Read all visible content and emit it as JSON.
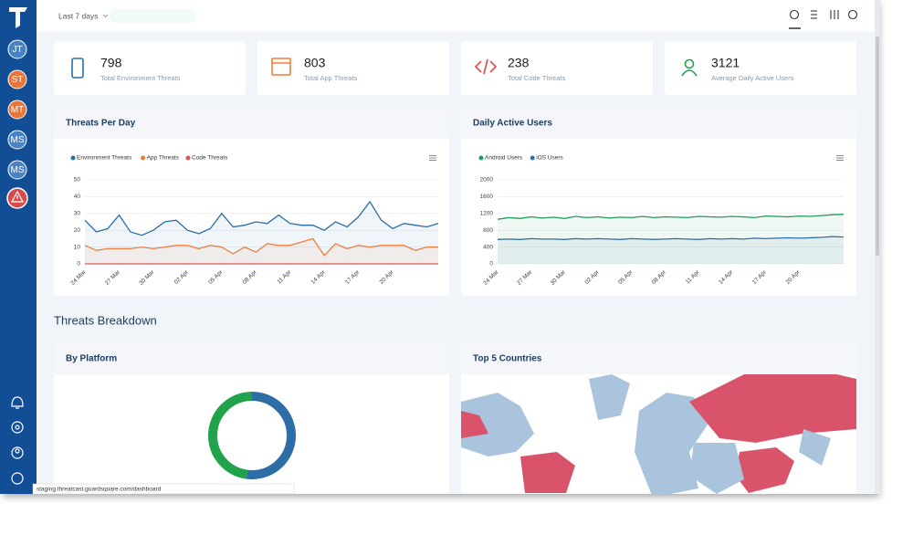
{
  "sidebar": {
    "avatars": [
      "JT",
      "ST",
      "MT",
      "MS",
      "MS"
    ]
  },
  "header": {
    "date_filter": "Last 7 days"
  },
  "stats": [
    {
      "value": 798,
      "label": "Total Environment Threats"
    },
    {
      "value": 803,
      "label": "Total App Threats"
    },
    {
      "value": 238,
      "label": "Total Code Threats"
    },
    {
      "value": 3121,
      "label": "Average Daily Active Users"
    }
  ],
  "chart_data": [
    {
      "type": "line",
      "title": "Threats Per Day",
      "categories": [
        "24 Mar",
        null,
        null,
        "27 Mar",
        null,
        null,
        "30 Mar",
        null,
        null,
        "02 Apr",
        null,
        null,
        "05 Apr",
        null,
        null,
        "08 Apr",
        null,
        null,
        "11 Apr",
        null,
        null,
        "14 Apr",
        null,
        null,
        "17 Apr",
        null,
        null,
        "20 Apr",
        null,
        null,
        null,
        null
      ],
      "series": [
        {
          "name": "Environment Threats",
          "color": "#2c6ea5",
          "values": [
            26,
            19,
            21,
            29,
            19,
            17,
            20,
            25,
            26,
            20,
            18,
            21,
            30,
            22,
            23,
            25,
            24,
            29,
            24,
            23,
            23,
            20,
            25,
            22,
            28,
            37,
            26,
            21,
            24,
            23,
            22,
            24
          ]
        },
        {
          "name": "App Threats",
          "color": "#f07d3c",
          "values": [
            11,
            8,
            9,
            9,
            9,
            10,
            9,
            10,
            11,
            11,
            9,
            11,
            10,
            6,
            10,
            7,
            12,
            11,
            11,
            13,
            15,
            5,
            12,
            9,
            11,
            10,
            11,
            11,
            11,
            8,
            10,
            10
          ]
        },
        {
          "name": "Code Threats",
          "color": "#e05555",
          "values": [
            0,
            0,
            0,
            0,
            0,
            0,
            0,
            0,
            0,
            0,
            0,
            0,
            0,
            0,
            0,
            0,
            0,
            0,
            0,
            0,
            0,
            0,
            0,
            0,
            0,
            0,
            0,
            0,
            0,
            0,
            0,
            0
          ]
        }
      ],
      "ylim": [
        0,
        50
      ],
      "yticks": [
        0,
        10,
        20,
        30,
        40,
        50
      ],
      "grid": true,
      "legend": "top"
    },
    {
      "type": "line",
      "title": "Daily Active Users",
      "categories": [
        "24 Mar",
        null,
        null,
        "27 Mar",
        null,
        null,
        "30 Mar",
        null,
        null,
        "02 Apr",
        null,
        null,
        "05 Apr",
        null,
        null,
        "08 Apr",
        null,
        null,
        "11 Apr",
        null,
        null,
        "14 Apr",
        null,
        null,
        "17 Apr",
        null,
        null,
        "20 Apr",
        null,
        null,
        null,
        null
      ],
      "series": [
        {
          "name": "Android Users",
          "color": "#1e9e5a",
          "values": [
            1060,
            1100,
            1080,
            1120,
            1090,
            1110,
            1080,
            1130,
            1100,
            1120,
            1090,
            1110,
            1100,
            1130,
            1100,
            1120,
            1110,
            1100,
            1130,
            1120,
            1110,
            1130,
            1120,
            1100,
            1140,
            1130,
            1120,
            1140,
            1130,
            1150,
            1170,
            1180
          ]
        },
        {
          "name": "iOS Users",
          "color": "#2f6fa8",
          "values": [
            580,
            590,
            580,
            600,
            590,
            590,
            580,
            600,
            590,
            600,
            590,
            580,
            600,
            590,
            580,
            590,
            600,
            590,
            580,
            600,
            590,
            600,
            590,
            610,
            600,
            610,
            620,
            610,
            620,
            630,
            650,
            640
          ]
        }
      ],
      "ylim": [
        0,
        2000
      ],
      "yticks": [
        0,
        400,
        800,
        1200,
        1600,
        2000
      ],
      "grid": true,
      "legend": "top"
    },
    {
      "type": "pie",
      "title": "By Platform",
      "values": [
        52,
        48
      ],
      "colors": [
        "#2c6ea5",
        "#20a34a"
      ]
    }
  ],
  "section_title": "Threats Breakdown",
  "map": {
    "title": "Top 5 Countries"
  },
  "status_bar": {
    "url": "staging.threatcast.guardsquare.com/dashboard"
  }
}
